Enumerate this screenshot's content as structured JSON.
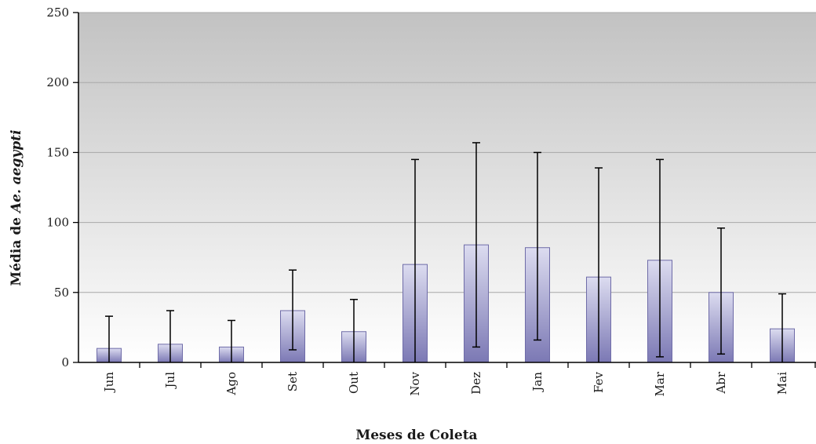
{
  "chart_data": {
    "type": "bar",
    "title": "",
    "xlabel": "Meses de Coleta",
    "ylabel_prefix": "Média de ",
    "ylabel_italic": "Ae. aegypti",
    "categories": [
      "Jun",
      "Jul",
      "Ago",
      "Set",
      "Out",
      "Nov",
      "Dez",
      "Jan",
      "Fev",
      "Mar",
      "Abr",
      "Mai"
    ],
    "values": [
      10,
      13,
      11,
      37,
      22,
      70,
      84,
      82,
      61,
      73,
      50,
      24
    ],
    "error_upper": [
      33,
      37,
      30,
      66,
      45,
      145,
      157,
      150,
      139,
      145,
      96,
      49
    ],
    "error_lower": [
      0,
      0,
      0,
      9,
      0,
      0,
      11,
      16,
      0,
      4,
      6,
      0
    ],
    "ylim": [
      0,
      250
    ],
    "yticks": [
      0,
      50,
      100,
      150,
      200,
      250
    ],
    "grid": true,
    "legend": "none",
    "colors": {
      "bar_top": "#dcdcf0",
      "bar_bottom": "#7b78b4",
      "bar_stroke": "#6f6ca8",
      "plot_bg_top": "#c2c2c2",
      "plot_bg_bottom": "#ffffff",
      "gridline": "#a8a8a8",
      "error_bar": "#000000"
    }
  }
}
